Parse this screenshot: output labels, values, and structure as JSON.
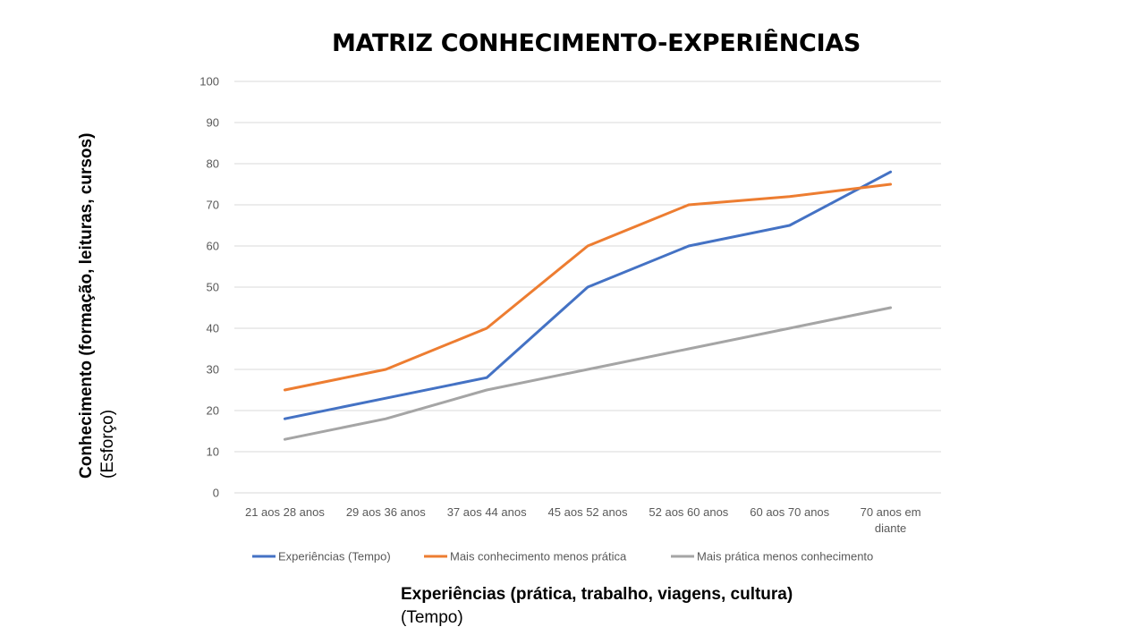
{
  "chart_data": {
    "type": "line",
    "title": "MATRIZ CONHECIMENTO-EXPERIÊNCIAS",
    "categories": [
      [
        "21 aos 28 anos"
      ],
      [
        "29 aos 36 anos"
      ],
      [
        "37 aos 44 anos"
      ],
      [
        "45 aos 52 anos"
      ],
      [
        "52 aos 60 anos"
      ],
      [
        "60 aos 70 anos"
      ],
      [
        "70 anos em",
        "diante"
      ]
    ],
    "series": [
      {
        "name": "Experiências (Tempo)",
        "color": "#4472C4",
        "values": [
          18,
          23,
          28,
          50,
          60,
          65,
          78
        ]
      },
      {
        "name": "Mais conhecimento menos prática",
        "color": "#ED7D31",
        "values": [
          25,
          30,
          40,
          60,
          70,
          72,
          75
        ]
      },
      {
        "name": "Mais prática menos conhecimento",
        "color": "#A5A5A5",
        "values": [
          13,
          18,
          25,
          30,
          35,
          40,
          45
        ]
      }
    ],
    "ylim": [
      0,
      100
    ],
    "yticks": [
      0,
      10,
      20,
      30,
      40,
      50,
      60,
      70,
      80,
      90,
      100
    ],
    "ylabel": "Conhecimento (formação, leituras, cursos)",
    "ylabel_sub": "(Esforço)",
    "xlabel": "Experiências (prática, trabalho, viagens, cultura)",
    "xlabel_sub": "(Tempo)",
    "grid": true,
    "legend_position": "bottom"
  }
}
